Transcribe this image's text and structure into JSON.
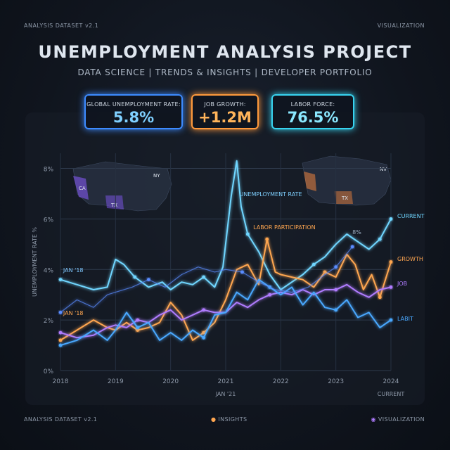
{
  "header": {
    "top_left": "ANALYSIS DATASET v2.1",
    "top_right": "VISUALIZATION",
    "title": "UNEMPLOYMENT ANALYSIS PROJECT",
    "subtitle": "DATA SCIENCE | TRENDS & INSIGHTS | DEVELOPER PORTFOLIO"
  },
  "kpis": [
    {
      "label": "GLOBAL UNEMPLOYMENT RATE:",
      "value": "5.8%",
      "color": "#3d8bff",
      "text_color": "#7fd0ff"
    },
    {
      "label": "JOB GROWTH:",
      "value": "+1.2M",
      "color": "#ff9a3c",
      "text_color": "#ffb45a"
    },
    {
      "label": "LABOR FORCE:",
      "value": "76.5%",
      "color": "#38d4f0",
      "text_color": "#8be8ff"
    }
  ],
  "footer": {
    "left": "ANALYSIS DATASET v2.1",
    "center": "INSIGHTS",
    "right": "VISUALIZATION"
  },
  "chart_data": {
    "type": "line",
    "ylabel": "UNEMPLOYMENT RATE %",
    "xlabel": "",
    "ylim": [
      0,
      8.6
    ],
    "xlim": [
      2018,
      2024
    ],
    "y_ticks": [
      {
        "value": 0,
        "label": "0%"
      },
      {
        "value": 2,
        "label": "2%"
      },
      {
        "value": 4,
        "label": "4%"
      },
      {
        "value": 6,
        "label": "6%"
      },
      {
        "value": 8,
        "label": "8%"
      }
    ],
    "x_ticks": [
      "2018",
      "2019",
      "2020",
      "2021",
      "2022",
      "2023",
      "2024"
    ],
    "x_sublabels": [
      {
        "x": 2021,
        "label": "JAN '21"
      },
      {
        "x": 2024,
        "label": "CURRENT"
      }
    ],
    "annotations": [
      {
        "x": 2018.05,
        "y": 3.9,
        "text": "JAN '18",
        "color": "#7fc8ff"
      },
      {
        "x": 2018.05,
        "y": 2.2,
        "text": "JAN '18",
        "color": "#ffa650"
      },
      {
        "x": 2021.25,
        "y": 6.9,
        "text": "UNEMPLOYMENT RATE",
        "color": "#7fd0ff"
      },
      {
        "x": 2021.5,
        "y": 5.6,
        "text": "LABOR PARTICIPATION",
        "color": "#ffa650"
      },
      {
        "x": 2023.3,
        "y": 5.4,
        "text": "8%",
        "color": "#9fb0c4"
      }
    ],
    "map_labels": [
      "CA",
      "NY",
      "TX",
      "NV",
      "TX"
    ],
    "grid": true,
    "series": [
      {
        "name": "CURRENT",
        "color": "#6fd6ff",
        "x": [
          2018,
          2018.3,
          2018.6,
          2018.85,
          2019,
          2019.15,
          2019.35,
          2019.6,
          2019.85,
          2020,
          2020.2,
          2020.4,
          2020.6,
          2020.8,
          2020.95,
          2021.1,
          2021.2,
          2021.28,
          2021.4,
          2021.6,
          2021.8,
          2022,
          2022.2,
          2022.4,
          2022.6,
          2022.8,
          2023,
          2023.2,
          2023.4,
          2023.6,
          2023.8,
          2024
        ],
        "y": [
          3.6,
          3.4,
          3.2,
          3.3,
          4.4,
          4.2,
          3.7,
          3.3,
          3.5,
          3.2,
          3.5,
          3.4,
          3.7,
          3.3,
          4.1,
          6.9,
          8.3,
          6.5,
          5.4,
          4.7,
          3.8,
          3.2,
          3.5,
          3.8,
          4.2,
          4.5,
          5.0,
          5.4,
          5.1,
          4.8,
          5.2,
          6.0
        ]
      },
      {
        "name": "GROWTH",
        "color": "#ffa650",
        "x": [
          2018,
          2018.3,
          2018.6,
          2018.85,
          2019,
          2019.2,
          2019.4,
          2019.6,
          2019.8,
          2020,
          2020.2,
          2020.4,
          2020.6,
          2020.8,
          2021,
          2021.2,
          2021.4,
          2021.6,
          2021.75,
          2021.9,
          2022,
          2022.2,
          2022.4,
          2022.6,
          2022.8,
          2023,
          2023.2,
          2023.35,
          2023.5,
          2023.65,
          2023.8,
          2024
        ],
        "y": [
          1.2,
          1.6,
          2.0,
          1.7,
          1.6,
          1.9,
          1.6,
          1.7,
          1.9,
          2.7,
          2.2,
          1.2,
          1.5,
          1.9,
          2.8,
          4.0,
          4.2,
          3.4,
          5.2,
          3.9,
          3.8,
          3.7,
          3.6,
          3.3,
          3.9,
          3.7,
          4.6,
          4.2,
          3.2,
          3.8,
          2.9,
          4.3
        ]
      },
      {
        "name": "JOB",
        "color": "#b07cff",
        "x": [
          2018,
          2018.3,
          2018.6,
          2018.85,
          2019,
          2019.2,
          2019.4,
          2019.6,
          2019.8,
          2020,
          2020.2,
          2020.4,
          2020.6,
          2020.8,
          2021,
          2021.2,
          2021.4,
          2021.6,
          2021.8,
          2022,
          2022.2,
          2022.4,
          2022.6,
          2022.8,
          2023,
          2023.2,
          2023.4,
          2023.6,
          2023.8,
          2024
        ],
        "y": [
          1.5,
          1.3,
          1.4,
          1.7,
          1.8,
          1.7,
          2.0,
          1.9,
          2.2,
          2.4,
          2.0,
          2.2,
          2.4,
          2.3,
          2.3,
          2.7,
          2.5,
          2.8,
          3.0,
          3.1,
          3.0,
          3.2,
          3.0,
          3.2,
          3.2,
          3.4,
          3.1,
          2.9,
          3.2,
          3.3
        ]
      },
      {
        "name": "LABIT",
        "color": "#4aa8ff",
        "x": [
          2018,
          2018.3,
          2018.6,
          2018.85,
          2019,
          2019.2,
          2019.4,
          2019.6,
          2019.8,
          2020,
          2020.2,
          2020.4,
          2020.6,
          2020.8,
          2021,
          2021.2,
          2021.4,
          2021.6,
          2021.8,
          2022,
          2022.2,
          2022.4,
          2022.6,
          2022.8,
          2023,
          2023.2,
          2023.4,
          2023.6,
          2023.8,
          2024
        ],
        "y": [
          1.0,
          1.2,
          1.6,
          1.2,
          1.6,
          2.3,
          1.7,
          1.9,
          1.2,
          1.5,
          1.2,
          1.6,
          1.3,
          2.2,
          2.3,
          3.1,
          2.8,
          3.6,
          3.3,
          3.0,
          3.3,
          2.6,
          3.1,
          2.5,
          2.4,
          2.8,
          2.1,
          2.3,
          1.7,
          2.0
        ]
      },
      {
        "name": "UNEMPLOYMENT RATE",
        "color": "#5a8cff",
        "x": [
          2018,
          2018.3,
          2018.6,
          2018.85,
          2019,
          2019.3,
          2019.6,
          2019.9,
          2020.2,
          2020.5,
          2020.8,
          2021,
          2021.3,
          2021.6,
          2021.9,
          2022.2,
          2022.5,
          2022.8,
          2023,
          2023.3
        ],
        "y": [
          2.3,
          2.8,
          2.5,
          3.0,
          3.1,
          3.3,
          3.6,
          3.3,
          3.8,
          4.1,
          3.9,
          4.0,
          3.9,
          3.5,
          3.2,
          3.1,
          3.3,
          3.8,
          4.1,
          4.9
        ]
      }
    ],
    "end_labels": [
      "CURRENT",
      "GROWTH",
      "JOB",
      "LABIT"
    ]
  }
}
